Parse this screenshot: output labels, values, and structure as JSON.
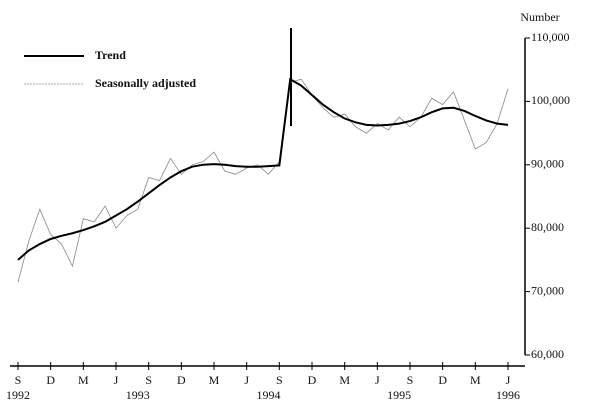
{
  "chart_data": {
    "type": "line",
    "y_label": "Number",
    "categories": [
      "S",
      null,
      null,
      "D",
      null,
      null,
      "M",
      null,
      null,
      "J",
      null,
      null,
      "S",
      null,
      null,
      "D",
      null,
      null,
      "M",
      null,
      null,
      "J",
      null,
      null,
      "S",
      null,
      null,
      "D",
      null,
      null,
      "M",
      null,
      null,
      "J",
      null,
      null,
      "S",
      null,
      null,
      "D",
      null,
      null,
      "M",
      null,
      null,
      "J"
    ],
    "years": [
      "1992",
      null,
      null,
      null,
      null,
      null,
      null,
      null,
      null,
      null,
      null,
      "1993",
      null,
      null,
      null,
      null,
      null,
      null,
      null,
      null,
      null,
      null,
      null,
      "1994",
      null,
      null,
      null,
      null,
      null,
      null,
      null,
      null,
      null,
      null,
      null,
      "1995",
      null,
      null,
      null,
      null,
      null,
      null,
      null,
      null,
      null,
      "1996"
    ],
    "series": [
      {
        "name": "Trend",
        "color": "#000000",
        "values": [
          75000,
          76500,
          77500,
          78300,
          78800,
          79200,
          79700,
          80300,
          81000,
          82000,
          83000,
          84200,
          85500,
          86800,
          88000,
          89000,
          89700,
          90000,
          90100,
          90000,
          89800,
          89700,
          89700,
          89800,
          89900,
          103500,
          102500,
          101000,
          99500,
          98300,
          97300,
          96700,
          96300,
          96200,
          96300,
          96500,
          96900,
          97500,
          98300,
          98900,
          99000,
          98500,
          97700,
          97000,
          96500,
          96300
        ]
      },
      {
        "name": "Seasonally adjusted",
        "color": "#888888",
        "values": [
          71500,
          78000,
          83000,
          79000,
          77500,
          74000,
          81500,
          81000,
          83500,
          80000,
          82000,
          83000,
          88000,
          87500,
          91000,
          88500,
          90000,
          90500,
          92000,
          89000,
          88500,
          89500,
          90000,
          88500,
          90500,
          103000,
          103500,
          101000,
          99000,
          97500,
          98000,
          96000,
          95000,
          96500,
          95500,
          97500,
          96000,
          97500,
          100500,
          99500,
          101500,
          97000,
          92500,
          93500,
          96500,
          102000
        ]
      }
    ],
    "ylim": [
      60000,
      110000
    ],
    "yticks": [
      {
        "value": 60000,
        "label": "60,000"
      },
      {
        "value": 70000,
        "label": "70,000"
      },
      {
        "value": 80000,
        "label": "80,000"
      },
      {
        "value": 90000,
        "label": "90,000"
      },
      {
        "value": 100000,
        "label": "100,000"
      },
      {
        "value": 110000,
        "label": "110,000"
      }
    ],
    "legend": "top-left",
    "grid": false
  }
}
